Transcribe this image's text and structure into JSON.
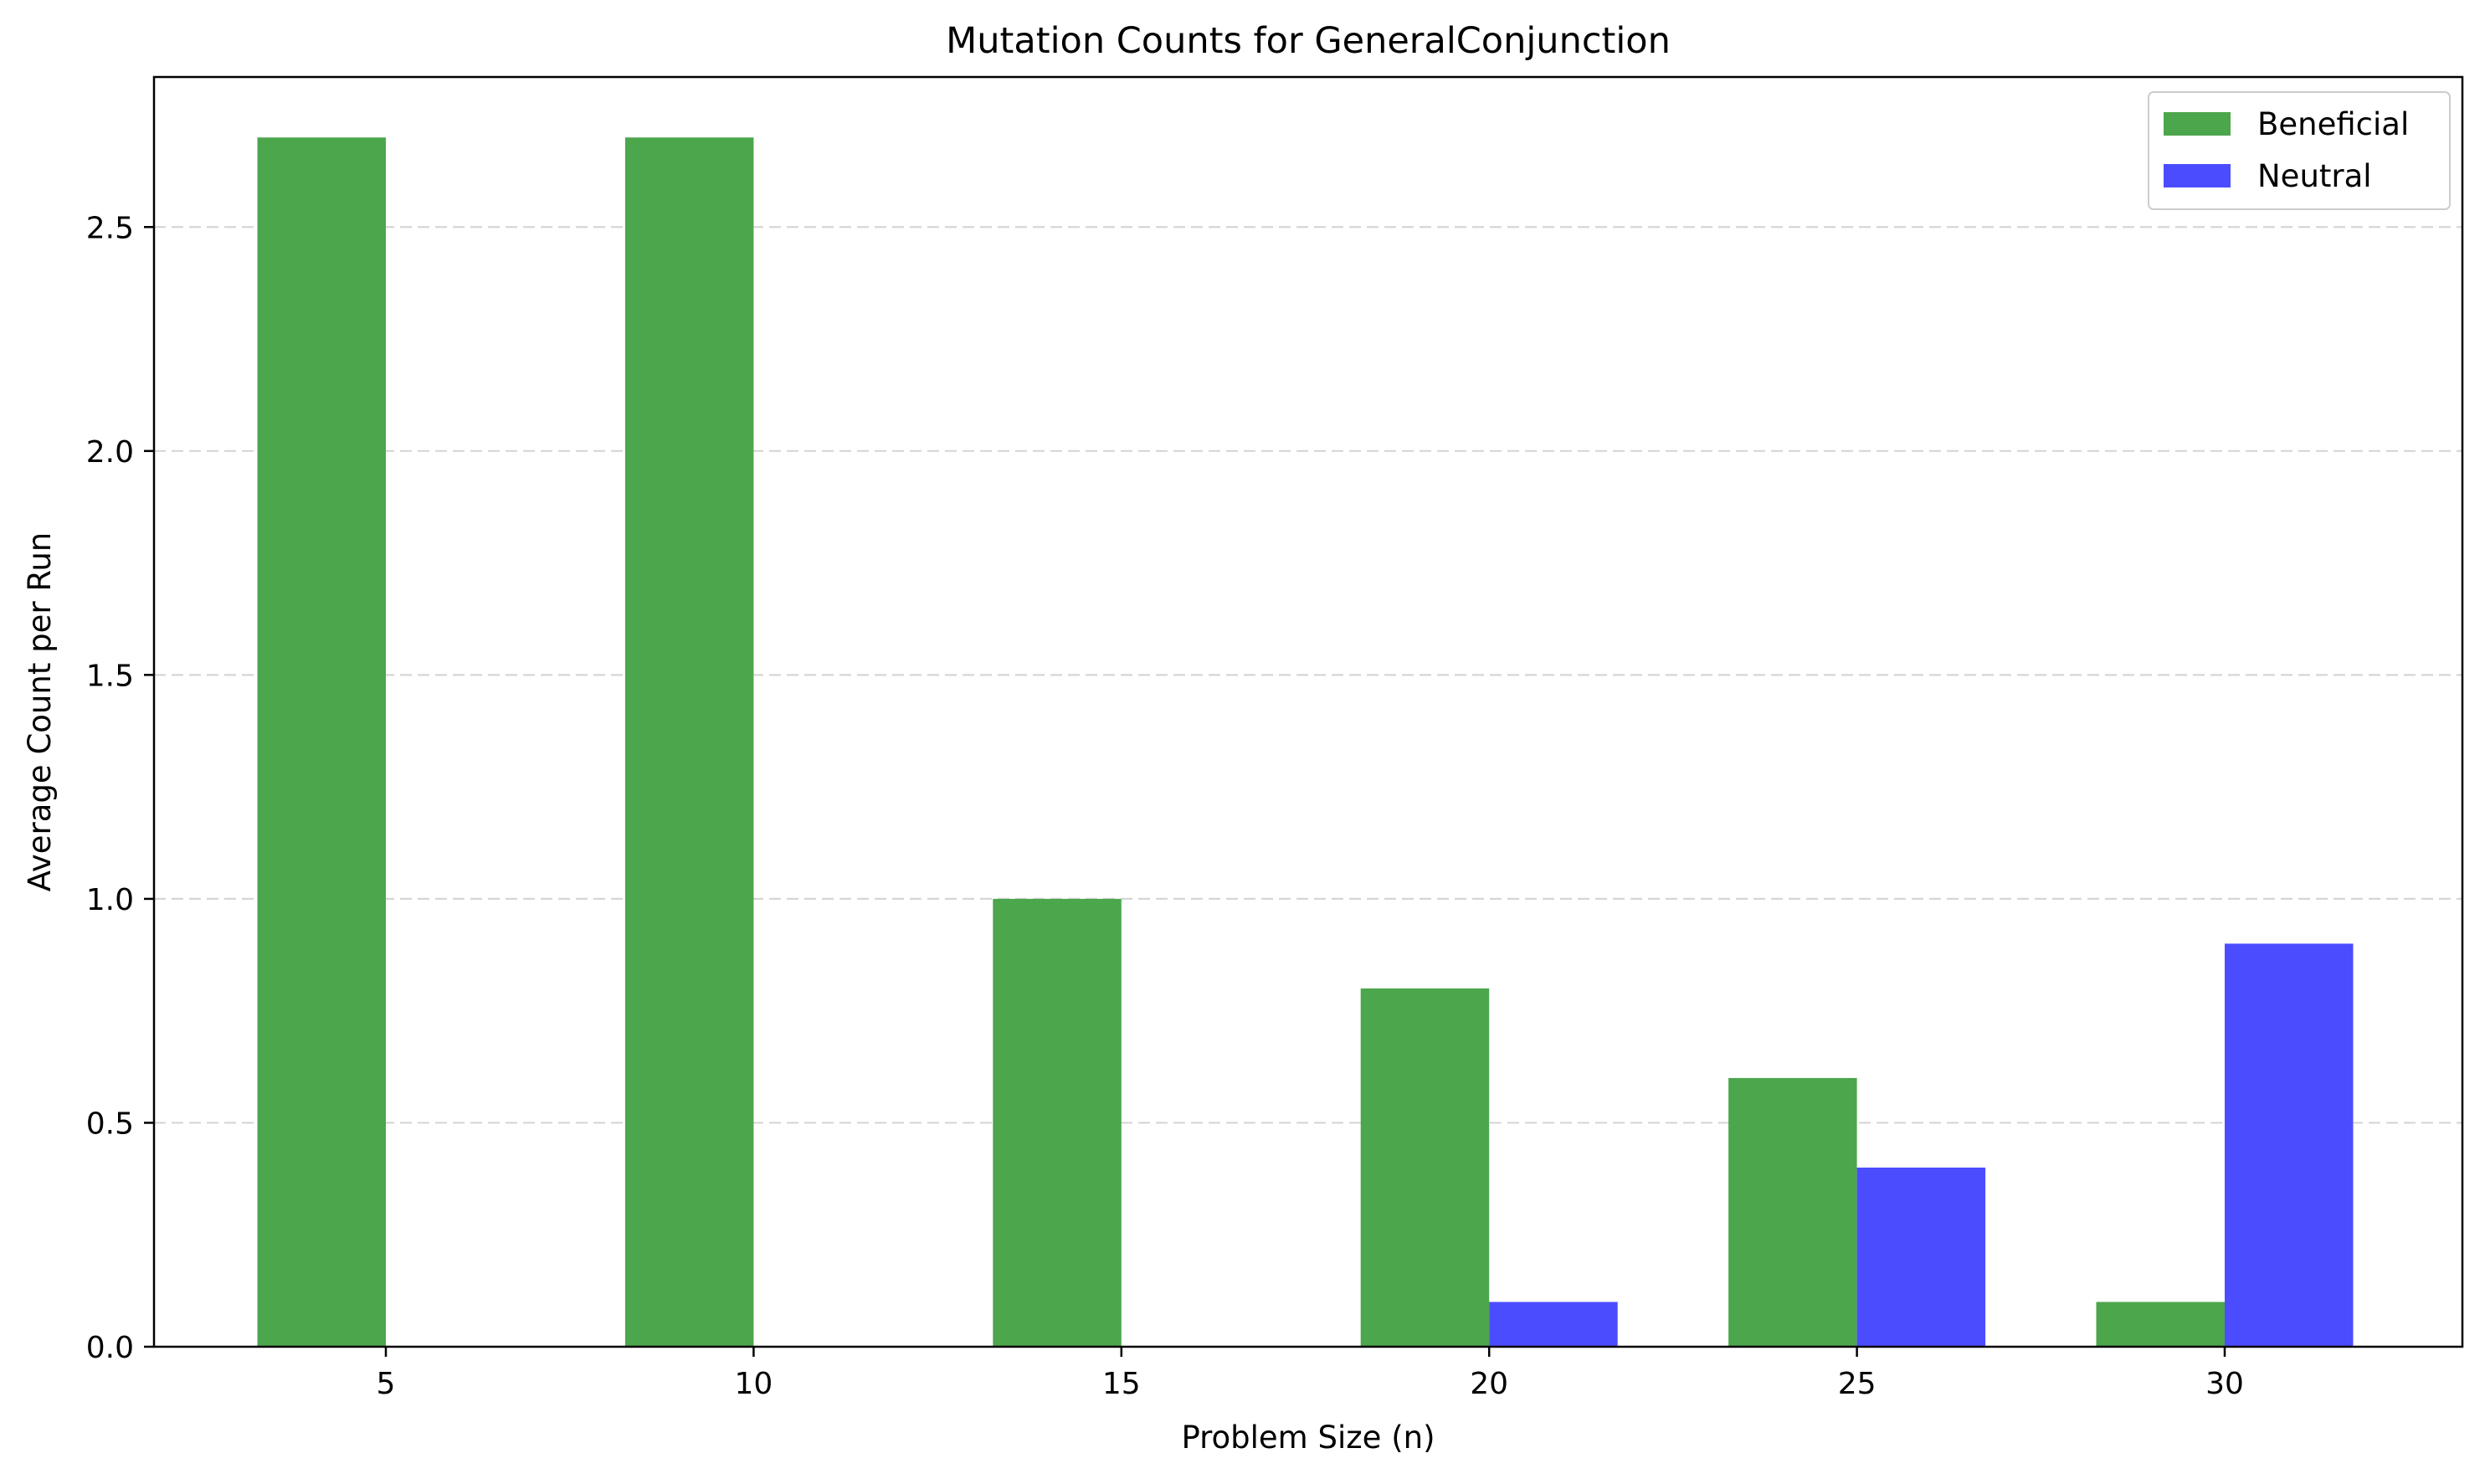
{
  "chart_data": {
    "type": "bar",
    "title": "Mutation Counts for GeneralConjunction",
    "xlabel": "Problem Size (n)",
    "ylabel": "Average Count per Run",
    "categories": [
      "5",
      "10",
      "15",
      "20",
      "25",
      "30"
    ],
    "series": [
      {
        "name": "Beneficial",
        "color": "#4ca64c",
        "values": [
          2.7,
          2.7,
          1.0,
          0.8,
          0.6,
          0.1
        ]
      },
      {
        "name": "Neutral",
        "color": "#4c4cff",
        "values": [
          0.0,
          0.0,
          0.0,
          0.1,
          0.4,
          0.9
        ]
      }
    ],
    "ylim": [
      0,
      2.835
    ],
    "yticks": [
      0.0,
      0.5,
      1.0,
      1.5,
      2.0,
      2.5
    ],
    "ytick_labels": [
      "0.0",
      "0.5",
      "1.0",
      "1.5",
      "2.0",
      "2.5"
    ],
    "grid": "y-dashed",
    "legend_position": "top-right"
  }
}
